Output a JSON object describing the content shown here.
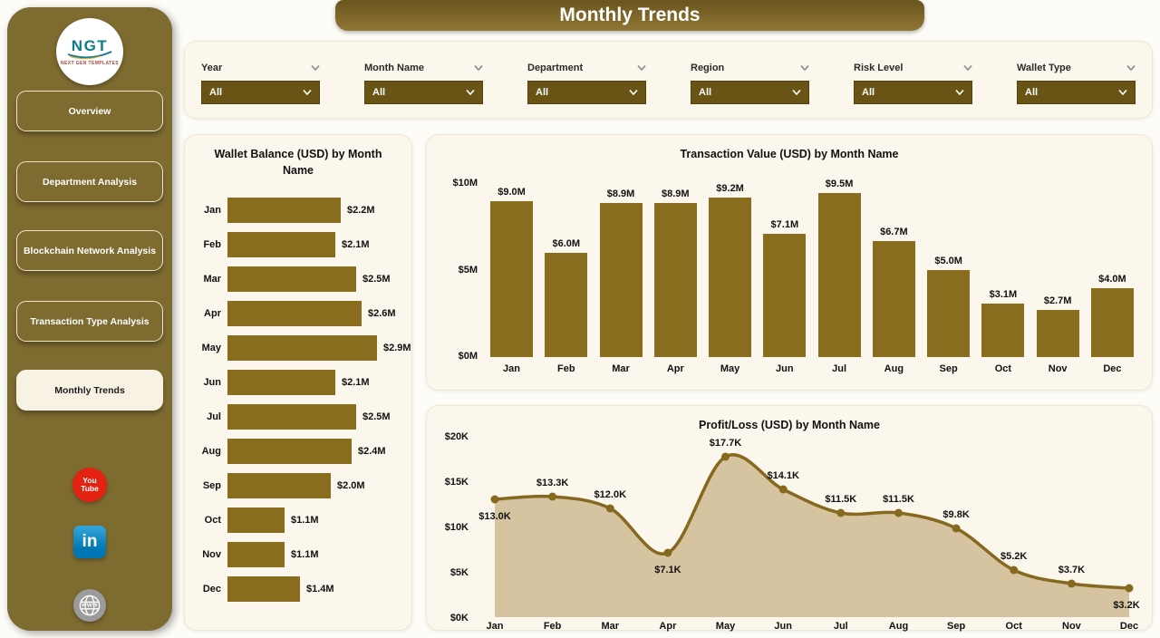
{
  "app": {
    "title": "Monthly Trends"
  },
  "sidebar": {
    "logo": {
      "text": "NGT",
      "subtext": "NEXT GEN TEMPLATES"
    },
    "items": [
      {
        "label": "Overview",
        "active": false
      },
      {
        "label": "Department Analysis",
        "active": false
      },
      {
        "label": "Blockchain Network Analysis",
        "active": false
      },
      {
        "label": "Transaction Type Analysis",
        "active": false
      },
      {
        "label": "Monthly Trends",
        "active": true
      }
    ],
    "social": [
      {
        "icon": "youtube-icon",
        "lines": [
          "You",
          "Tube"
        ]
      },
      {
        "icon": "linkedin-icon",
        "text": "in"
      },
      {
        "icon": "website-icon",
        "text": "www"
      }
    ]
  },
  "filters": [
    {
      "label": "Year",
      "value": "All"
    },
    {
      "label": "Month Name",
      "value": "All"
    },
    {
      "label": "Department",
      "value": "All"
    },
    {
      "label": "Region",
      "value": "All"
    },
    {
      "label": "Risk Level",
      "value": "All"
    },
    {
      "label": "Wallet Type",
      "value": "All"
    }
  ],
  "chart_data": [
    {
      "type": "bar",
      "orientation": "horizontal",
      "title": "Wallet Balance (USD) by Month Name",
      "categories": [
        "Jan",
        "Feb",
        "Mar",
        "Apr",
        "May",
        "Jun",
        "Jul",
        "Aug",
        "Sep",
        "Oct",
        "Nov",
        "Dec"
      ],
      "values": [
        2.2,
        2.1,
        2.5,
        2.6,
        2.9,
        2.1,
        2.5,
        2.4,
        2.0,
        1.1,
        1.1,
        1.4
      ],
      "labels": [
        "$2.2M",
        "$2.1M",
        "$2.5M",
        "$2.6M",
        "$2.9M",
        "$2.1M",
        "$2.5M",
        "$2.4M",
        "$2.0M",
        "$1.1M",
        "$1.1M",
        "$1.4M"
      ],
      "unit": "USD millions",
      "xlim": [
        0,
        2.9
      ],
      "grid": false
    },
    {
      "type": "bar",
      "orientation": "vertical",
      "title": "Transaction Value (USD) by Month Name",
      "categories": [
        "Jan",
        "Feb",
        "Mar",
        "Apr",
        "May",
        "Jun",
        "Jul",
        "Aug",
        "Sep",
        "Oct",
        "Nov",
        "Dec"
      ],
      "values": [
        9.0,
        6.0,
        8.9,
        8.9,
        9.2,
        7.1,
        9.5,
        6.7,
        5.0,
        3.1,
        2.7,
        4.0
      ],
      "labels": [
        "$9.0M",
        "$6.0M",
        "$8.9M",
        "$8.9M",
        "$9.2M",
        "$7.1M",
        "$9.5M",
        "$6.7M",
        "$5.0M",
        "$3.1M",
        "$2.7M",
        "$4.0M"
      ],
      "unit": "USD millions",
      "yticks": [
        {
          "label": "$10M",
          "value": 10
        },
        {
          "label": "$5M",
          "value": 5
        },
        {
          "label": "$0M",
          "value": 0
        }
      ],
      "ylim": [
        0,
        10
      ],
      "grid": false
    },
    {
      "type": "area",
      "title": "Profit/Loss (USD) by Month Name",
      "categories": [
        "Jan",
        "Feb",
        "Mar",
        "Apr",
        "May",
        "Jun",
        "Jul",
        "Aug",
        "Sep",
        "Oct",
        "Nov",
        "Dec"
      ],
      "values": [
        13.0,
        13.3,
        12.0,
        7.1,
        17.7,
        14.1,
        11.5,
        11.5,
        9.8,
        5.2,
        3.7,
        3.2
      ],
      "labels": [
        "$13.0K",
        "$13.3K",
        "$12.0K",
        "$7.1K",
        "$17.7K",
        "$14.1K",
        "$11.5K",
        "$11.5K",
        "$9.8K",
        "$5.2K",
        "$3.7K",
        "$3.2K"
      ],
      "label_positions": [
        "below",
        "above",
        "above",
        "below",
        "above",
        "above",
        "above",
        "above",
        "above",
        "above",
        "above",
        "below"
      ],
      "unit": "USD thousands",
      "yticks": [
        {
          "label": "$20K",
          "value": 20
        },
        {
          "label": "$15K",
          "value": 15
        },
        {
          "label": "$10K",
          "value": 10
        },
        {
          "label": "$5K",
          "value": 5
        },
        {
          "label": "$0K",
          "value": 0
        }
      ],
      "ylim": [
        0,
        20
      ],
      "grid": false
    }
  ],
  "colors": {
    "sidebar_gold": "#7e6b30",
    "banner_gold_top": "#6a551e",
    "banner_gold_bottom": "#907635",
    "bar": "#8a6c1f",
    "area_fill": "#d5c49f",
    "line": "#86691e",
    "dropdown_bg": "#6a5415",
    "active_nav_bg": "#f7f2e3",
    "youtube_red": "#e32212",
    "linkedin_blue": "#0077b5",
    "logo_teal": "#0d7c8c"
  }
}
